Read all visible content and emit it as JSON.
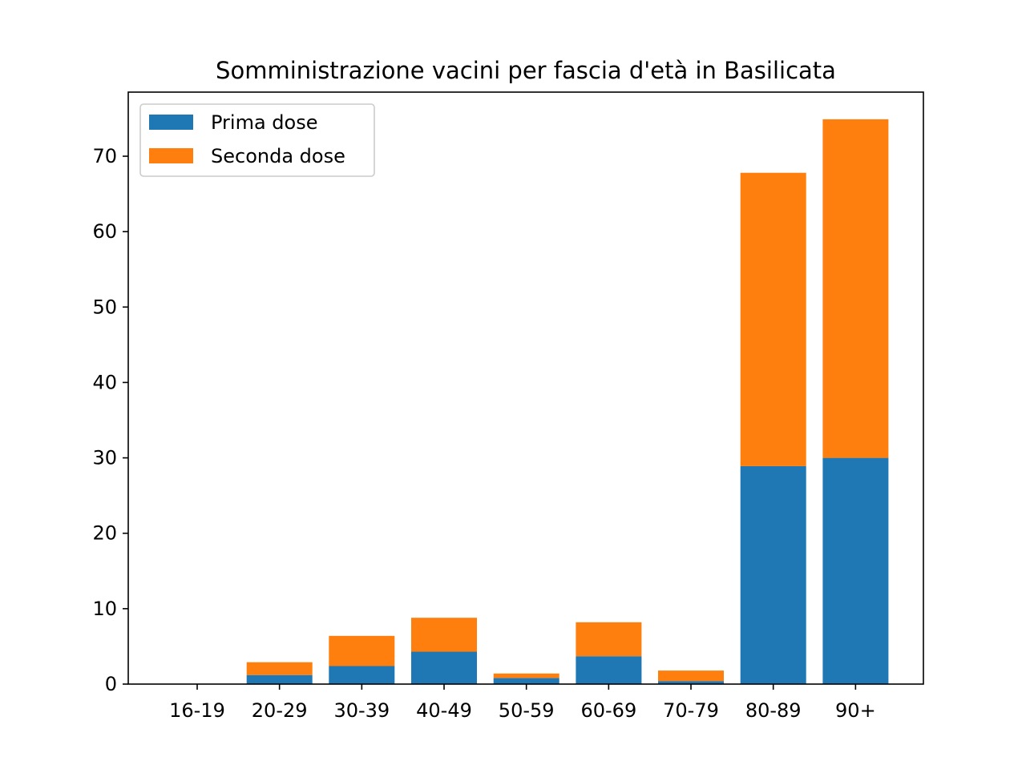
{
  "chart_data": {
    "type": "bar",
    "stacked": true,
    "title": "Somministrazione vacini per fascia d'età in Basilicata",
    "xlabel": "",
    "ylabel": "",
    "categories": [
      "16-19",
      "20-29",
      "30-39",
      "40-49",
      "50-59",
      "60-69",
      "70-79",
      "80-89",
      "90+"
    ],
    "series": [
      {
        "name": "Prima dose",
        "color": "#1f77b4",
        "values": [
          0,
          1.2,
          2.4,
          4.3,
          0.8,
          3.7,
          0.4,
          28.9,
          30.0
        ]
      },
      {
        "name": "Seconda dose",
        "color": "#ff7f0e",
        "values": [
          0,
          1.7,
          4.0,
          4.5,
          0.6,
          4.5,
          1.4,
          38.9,
          44.9
        ]
      }
    ],
    "ylim": [
      0,
      78.5
    ],
    "yticks": [
      0,
      10,
      20,
      30,
      40,
      50,
      60,
      70
    ],
    "legend_position": "top-left",
    "grid": false
  }
}
